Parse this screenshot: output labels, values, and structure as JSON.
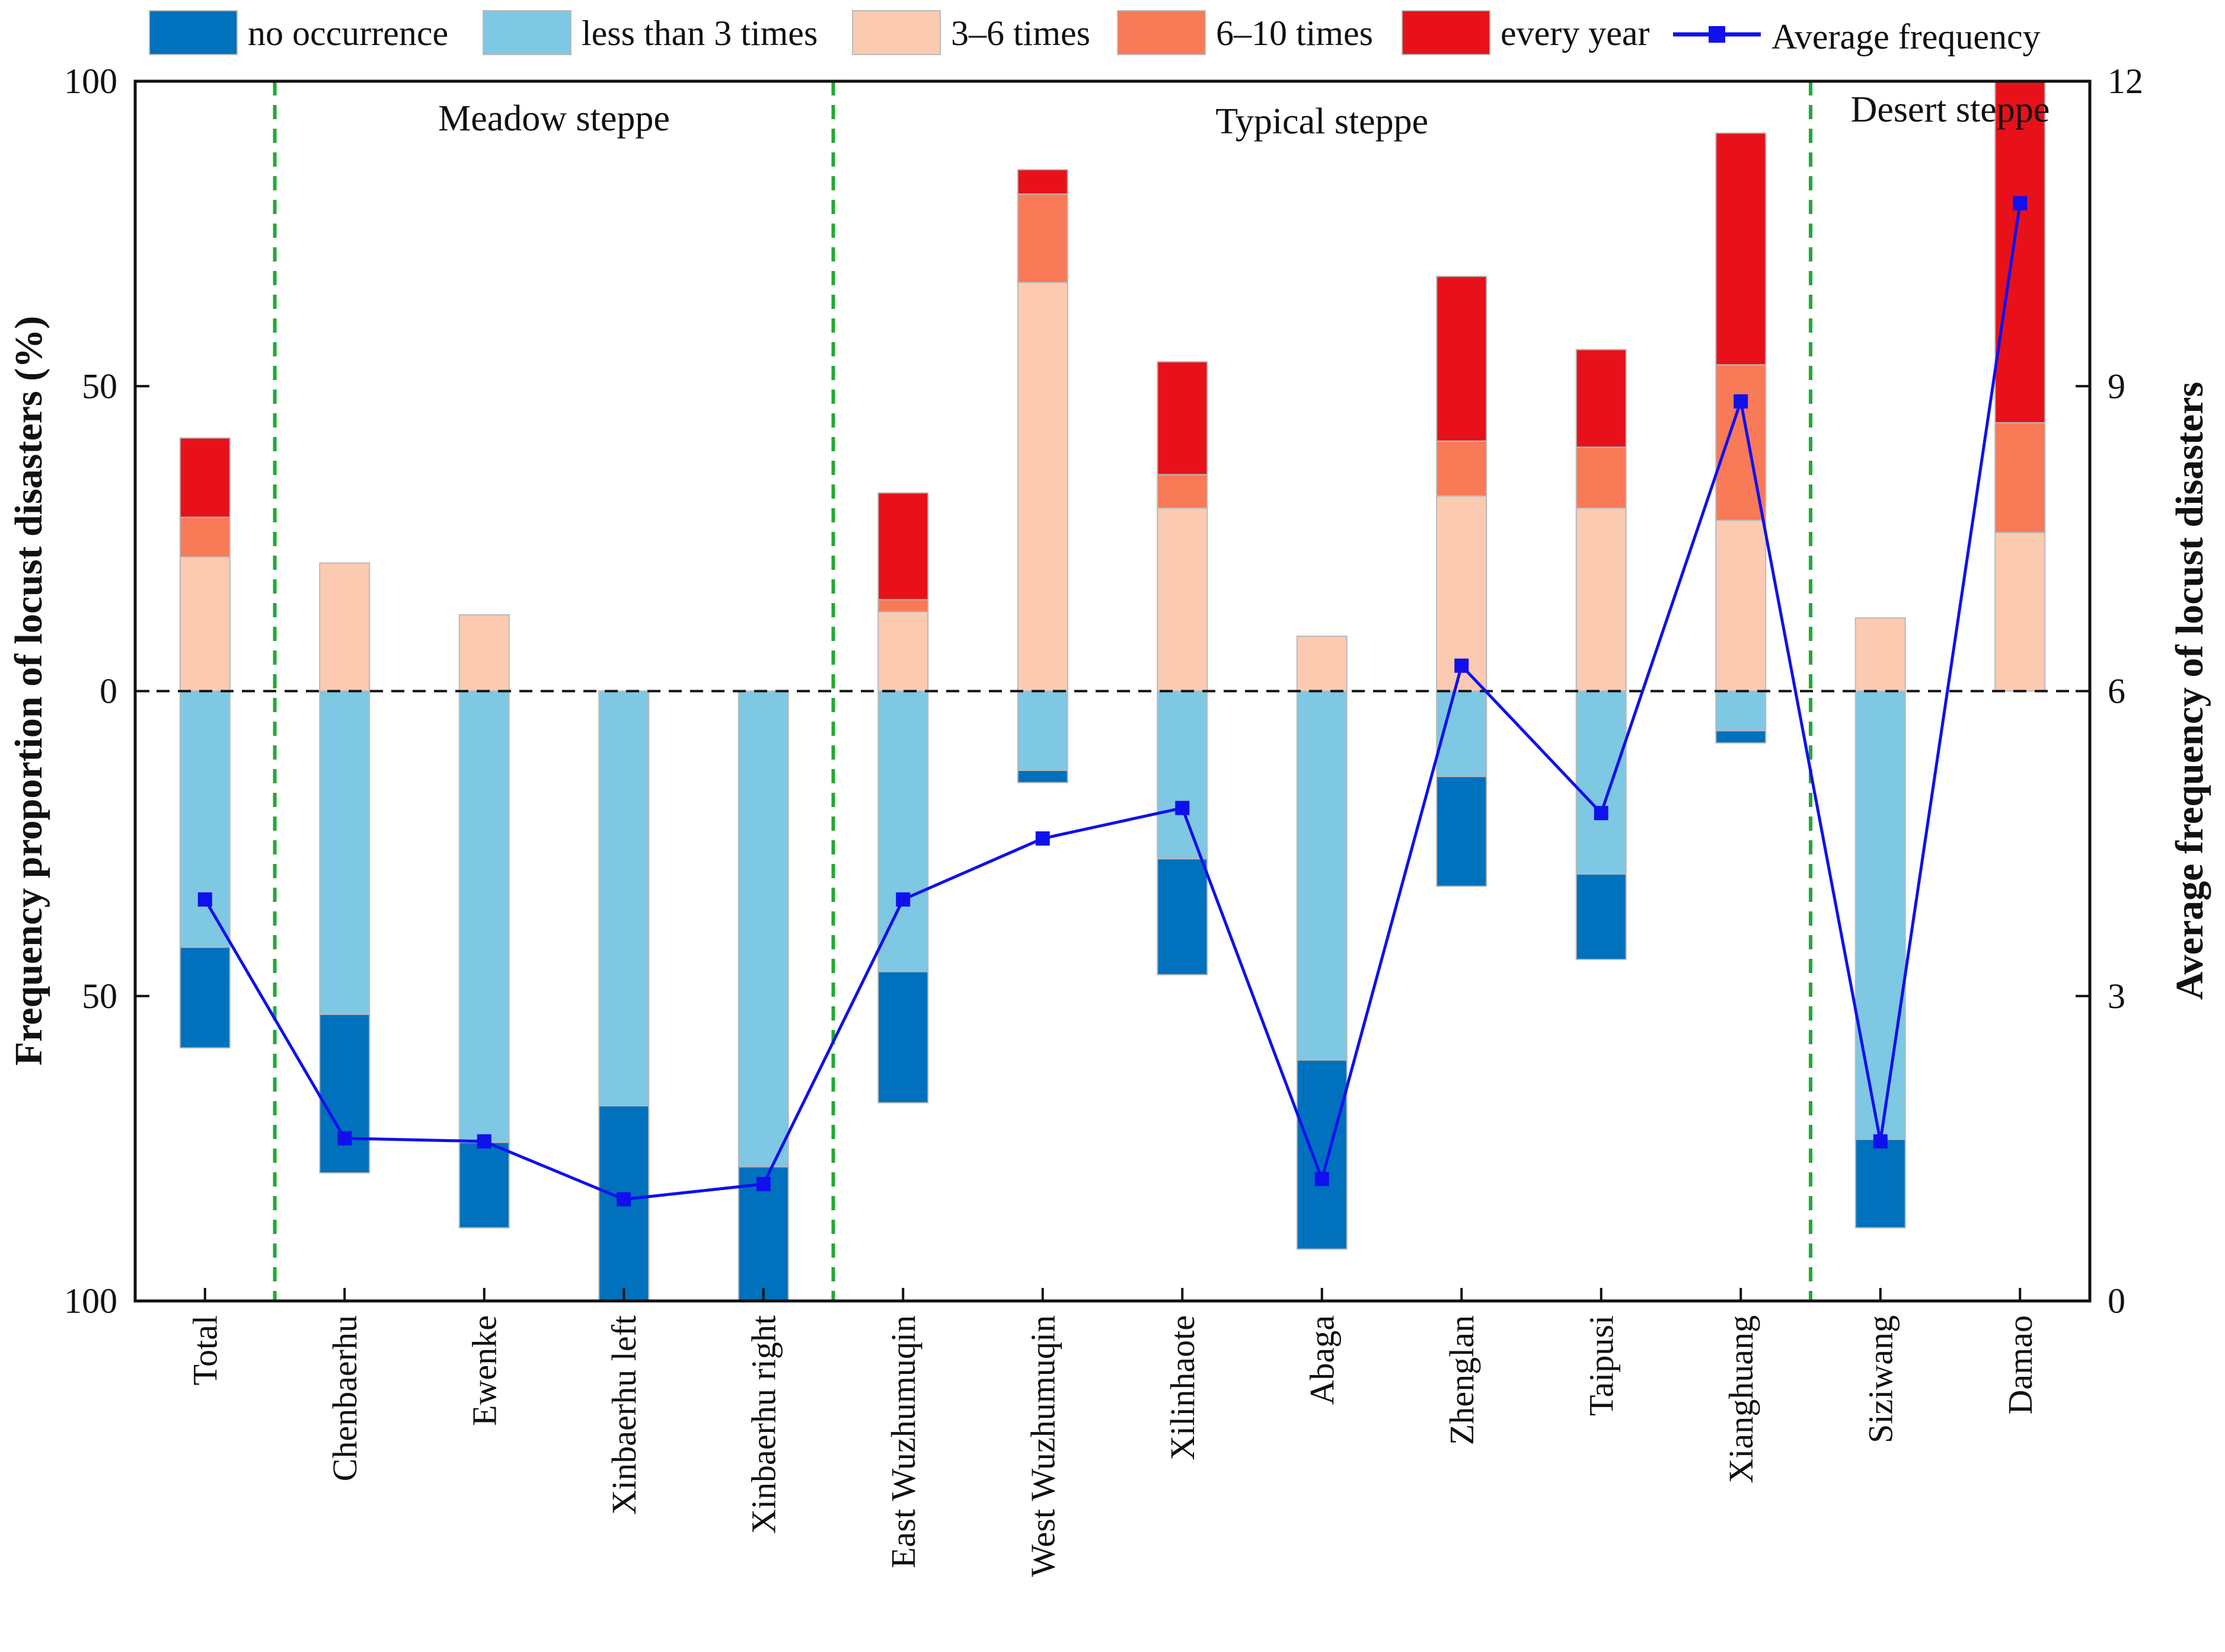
{
  "chart_data": {
    "type": "bar",
    "subtype": "diverging-stacked-bar-with-line",
    "categories": [
      "Total",
      "Chenbaerhu",
      "Ewenke",
      "Xinbaerhu left",
      "Xinbaerhu right",
      "East Wuzhumuqin",
      "West Wuzhumuqin",
      "Xilinhaote",
      "Abaga",
      "Zhenglan",
      "Taipusi",
      "Xianghuang",
      "Siziwang",
      "Damao"
    ],
    "regions": [
      {
        "label": "Meadow steppe",
        "from": 1,
        "to": 4
      },
      {
        "label": "Typical steppe",
        "from": 5,
        "to": 11
      },
      {
        "label": "Desert steppe",
        "from": 12,
        "to": 13
      }
    ],
    "series_up": [
      {
        "name": "3–6 times",
        "color": "#fccab0",
        "values": [
          22,
          21,
          12.5,
          0,
          0,
          13,
          67,
          30,
          9,
          32,
          30,
          28,
          12,
          26
        ]
      },
      {
        "name": "6–10 times",
        "color": "#f87a57",
        "values": [
          6.5,
          0,
          0,
          0,
          0,
          2,
          14.5,
          5.5,
          0,
          9,
          10,
          25.5,
          0,
          18
        ]
      },
      {
        "name": "every year",
        "color": "#e8111a",
        "values": [
          13,
          0,
          0,
          0,
          0,
          17.5,
          4,
          18.5,
          0,
          27,
          16,
          38,
          0,
          56
        ]
      }
    ],
    "series_down": [
      {
        "name": "less than 3 times",
        "color": "#7ec8e3",
        "values": [
          42,
          53,
          74,
          68,
          78,
          46,
          13,
          27.5,
          60.5,
          14,
          30,
          6.5,
          73.5,
          0
        ]
      },
      {
        "name": "no occurrence",
        "color": "#0071bd",
        "values": [
          16.5,
          26,
          14,
          32,
          22,
          21.5,
          2,
          19,
          31,
          18,
          14,
          2,
          14.5,
          0
        ]
      }
    ],
    "line_series": {
      "name": "Average frequency",
      "color": "#1010ee",
      "values": [
        3.95,
        1.6,
        1.57,
        1.0,
        1.15,
        3.95,
        4.55,
        4.85,
        1.2,
        6.25,
        4.8,
        8.85,
        1.57,
        10.8
      ]
    },
    "legend": [
      {
        "name": "no occurrence",
        "color": "#0071bd",
        "kind": "box"
      },
      {
        "name": "less than 3 times",
        "color": "#7ec8e3",
        "kind": "box"
      },
      {
        "name": "3–6 times",
        "color": "#fccab0",
        "kind": "box"
      },
      {
        "name": "6–10 times",
        "color": "#f87a57",
        "kind": "box"
      },
      {
        "name": "every year",
        "color": "#e8111a",
        "kind": "box"
      },
      {
        "name": "Average frequency",
        "color": "#1010ee",
        "kind": "line"
      }
    ],
    "ylabel": "Frequency proportion of locust disasters (%)",
    "y2label": "Average frequency of locust disasters",
    "ylim": [
      -100,
      100
    ],
    "y2lim": [
      0,
      12
    ],
    "yticks": [
      {
        "value": 100,
        "label": "100"
      },
      {
        "value": 50,
        "label": "50"
      },
      {
        "value": 0,
        "label": "0"
      },
      {
        "value": -50,
        "label": "50"
      },
      {
        "value": -100,
        "label": "100"
      }
    ],
    "y2ticks": [
      {
        "value": 12,
        "label": "12"
      },
      {
        "value": 9,
        "label": "9"
      },
      {
        "value": 6,
        "label": "6"
      },
      {
        "value": 3,
        "label": "3"
      },
      {
        "value": 0,
        "label": "0"
      }
    ],
    "divider_color": "#22aa33",
    "grid": false
  }
}
